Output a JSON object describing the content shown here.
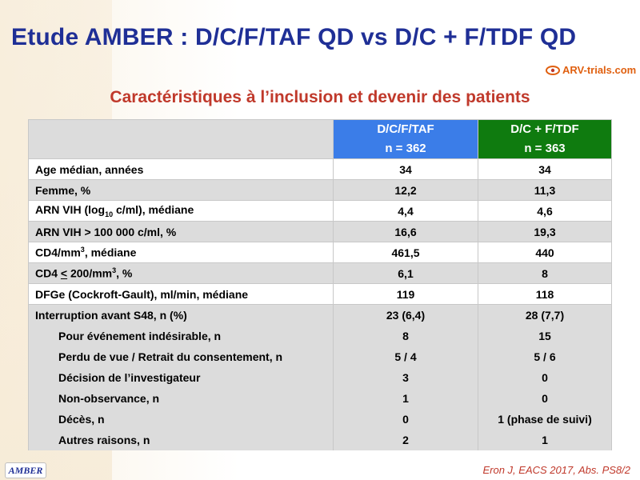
{
  "title": "Etude AMBER : D/C/F/TAF QD vs D/C + F/TDF QD",
  "logo_text": "ARV-trials.com",
  "subtitle": "Caractéristiques à l’inclusion et devenir des patients",
  "table": {
    "col1": {
      "name": "D/C/F/TAF",
      "n": "n = 362",
      "color": "#3b7de8"
    },
    "col2": {
      "name": "D/C + F/TDF",
      "n": "n = 363",
      "color": "#0f7b0f"
    },
    "rows": [
      {
        "label": "Age médian, années",
        "v1": "34",
        "v2": "34"
      },
      {
        "label": "Femme, %",
        "v1": "12,2",
        "v2": "11,3"
      },
      {
        "label_pre": "ARN VIH (log",
        "label_sub": "10",
        "label_post": " c/ml), médiane",
        "v1": "4,4",
        "v2": "4,6"
      },
      {
        "label": "ARN VIH > 100 000 c/ml, %",
        "v1": "16,6",
        "v2": "19,3"
      },
      {
        "label_pre": "CD4/mm",
        "label_sup": "3",
        "label_post": ", médiane",
        "v1": "461,5",
        "v2": "440"
      },
      {
        "label_pre": "CD4 ",
        "label_u": "<",
        "label_mid": " 200/mm",
        "label_sup": "3",
        "label_post": ", %",
        "v1": "6,1",
        "v2": "8"
      },
      {
        "label": "DFGe (Cockroft-Gault), ml/min, médiane",
        "v1": "119",
        "v2": "118"
      }
    ],
    "interruption": {
      "label": "Interruption avant S48, n (%)",
      "v1": "23 (6,4)",
      "v2": "28 (7,7)",
      "items": [
        {
          "label": "Pour événement indésirable, n",
          "v1": "8",
          "v2": "15"
        },
        {
          "label": "Perdu de vue / Retrait du consentement, n",
          "v1": "5 / 4",
          "v2": "5 / 6"
        },
        {
          "label": "Décision de l’investigateur",
          "v1": "3",
          "v2": "0"
        },
        {
          "label": "Non-observance, n",
          "v1": "1",
          "v2": "0"
        },
        {
          "label": "Décès, n",
          "v1": "0",
          "v2": "1 (phase de suivi)"
        },
        {
          "label": "Autres raisons, n",
          "v1": "2",
          "v2": "1"
        }
      ]
    }
  },
  "footer": {
    "study_tag": "AMBER",
    "reference": "Eron J, EACS 2017, Abs. PS8/2"
  }
}
